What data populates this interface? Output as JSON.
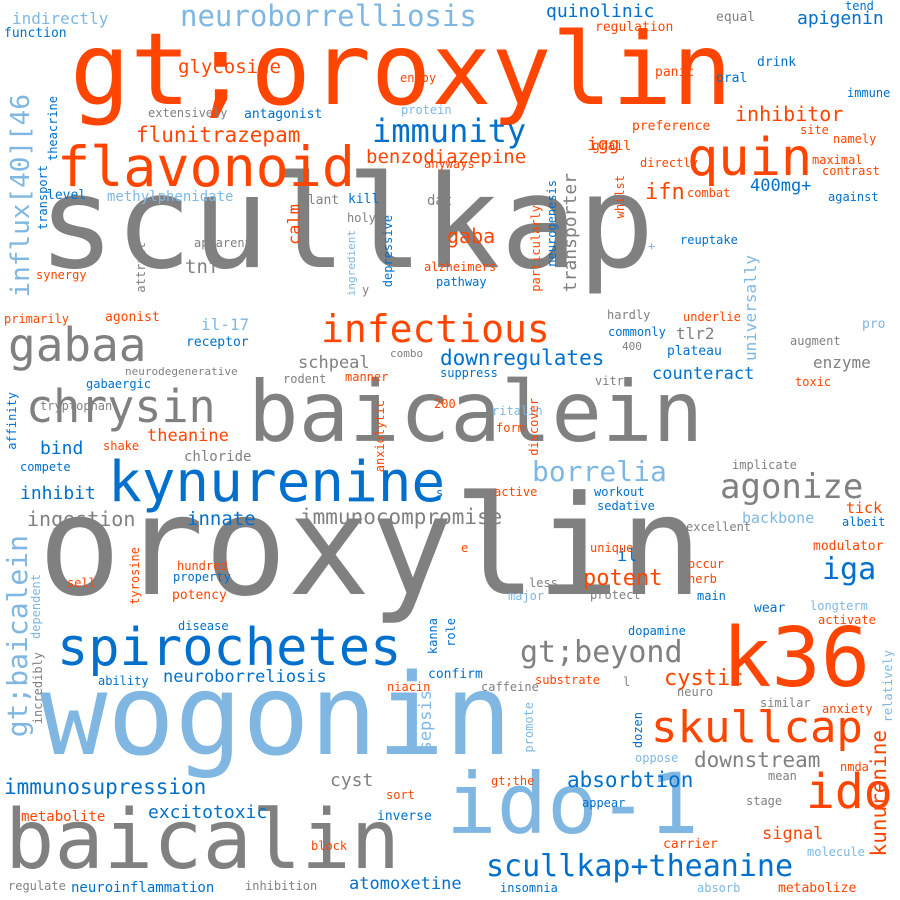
{
  "palette": {
    "orange": "#ff4500",
    "grey": "#808080",
    "blue": "#0070cc",
    "light_blue": "#7fb7e2"
  },
  "words": [
    {
      "text": "scullkap"
    },
    {
      "text": "oroxylin"
    },
    {
      "text": "wogonin"
    },
    {
      "text": "gt;oroxylin"
    },
    {
      "text": "baicalein"
    },
    {
      "text": "baicalin"
    },
    {
      "text": "ido-1"
    },
    {
      "text": "k36"
    },
    {
      "text": "kynurenine"
    },
    {
      "text": "spirochetes"
    },
    {
      "text": "flavonoid"
    },
    {
      "text": "quin"
    },
    {
      "text": "infectious"
    },
    {
      "text": "gabaa"
    },
    {
      "text": "chrysin"
    },
    {
      "text": "skullcap"
    },
    {
      "text": "ido"
    },
    {
      "text": "agonize"
    },
    {
      "text": "immunity"
    },
    {
      "text": "scullkap+theanine"
    },
    {
      "text": "neuroborrelliosis"
    },
    {
      "text": "gt;beyond"
    },
    {
      "text": "borrelia"
    },
    {
      "text": "gt;baicalein"
    },
    {
      "text": "influx[40][46"
    },
    {
      "text": "immunosupression"
    },
    {
      "text": "iga"
    },
    {
      "text": "cystic"
    },
    {
      "text": "potent"
    },
    {
      "text": "flunitrazepam"
    },
    {
      "text": "benzodiazepine"
    },
    {
      "text": "kunurenine"
    },
    {
      "text": "downregulates"
    },
    {
      "text": "downstream"
    },
    {
      "text": "absorbtion"
    },
    {
      "text": "quinolinic"
    },
    {
      "text": "apigenin"
    },
    {
      "text": "inhibitor"
    },
    {
      "text": "ifn"
    },
    {
      "text": "gaba"
    },
    {
      "text": "glycoside"
    },
    {
      "text": "tnf"
    },
    {
      "text": "immunocompromise"
    },
    {
      "text": "ingestion"
    },
    {
      "text": "innate"
    },
    {
      "text": "inhibit"
    },
    {
      "text": "bind"
    },
    {
      "text": "excitotoxic"
    },
    {
      "text": "neuroborreliosis"
    },
    {
      "text": "counteract"
    },
    {
      "text": "atomoxetine"
    },
    {
      "text": "neuroinflammation"
    },
    {
      "text": "theanine"
    },
    {
      "text": "igg"
    },
    {
      "text": "transporter"
    },
    {
      "text": "calm"
    },
    {
      "text": "schpeal"
    },
    {
      "text": "cyst"
    },
    {
      "text": "sepsis"
    },
    {
      "text": "signal"
    },
    {
      "text": "universally"
    },
    {
      "text": "400mg+"
    },
    {
      "text": "il-17"
    },
    {
      "text": "tlr2"
    },
    {
      "text": "enzyme"
    },
    {
      "text": "il"
    },
    {
      "text": "backbone"
    },
    {
      "text": "tick"
    },
    {
      "text": "modulator"
    },
    {
      "text": "indirectly"
    },
    {
      "text": "function"
    },
    {
      "text": "regulation"
    },
    {
      "text": "equal"
    },
    {
      "text": "tend"
    },
    {
      "text": "immune"
    },
    {
      "text": "drink"
    },
    {
      "text": "oral"
    },
    {
      "text": "panic"
    },
    {
      "text": "enjoy"
    },
    {
      "text": "protein"
    },
    {
      "text": "extensively"
    },
    {
      "text": "antagonist"
    },
    {
      "text": "theacrine"
    },
    {
      "text": "grail"
    },
    {
      "text": "preference"
    },
    {
      "text": "site"
    },
    {
      "text": "namely"
    },
    {
      "text": "maximal"
    },
    {
      "text": "contrast"
    },
    {
      "text": "directly"
    },
    {
      "text": "anyways"
    },
    {
      "text": "combat"
    },
    {
      "text": "against"
    },
    {
      "text": "methylphenidate"
    },
    {
      "text": "level"
    },
    {
      "text": "transport"
    },
    {
      "text": "plant"
    },
    {
      "text": "kill"
    },
    {
      "text": "holy"
    },
    {
      "text": "dat"
    },
    {
      "text": "whilst"
    },
    {
      "text": "reuptake"
    },
    {
      "text": "apparent"
    },
    {
      "text": "depressive"
    },
    {
      "text": "ingredient"
    },
    {
      "text": "particularly"
    },
    {
      "text": "neurogenesis"
    },
    {
      "text": "alzheimers"
    },
    {
      "text": "pathway"
    },
    {
      "text": "synergy"
    },
    {
      "text": "attract"
    },
    {
      "text": "primarily"
    },
    {
      "text": "agonist"
    },
    {
      "text": "receptor"
    },
    {
      "text": "hardly"
    },
    {
      "text": "underlie"
    },
    {
      "text": "commonly"
    },
    {
      "text": "augment"
    },
    {
      "text": "plateau"
    },
    {
      "text": "pro"
    },
    {
      "text": "combo"
    },
    {
      "text": "400"
    },
    {
      "text": "neurodegenerative"
    },
    {
      "text": "rodent"
    },
    {
      "text": "manner"
    },
    {
      "text": "suppress"
    },
    {
      "text": "toxic"
    },
    {
      "text": "gabaergic"
    },
    {
      "text": "affinity"
    },
    {
      "text": "tryptophan"
    },
    {
      "text": "200"
    },
    {
      "text": "vitro"
    },
    {
      "text": "ritalin"
    },
    {
      "text": "form"
    },
    {
      "text": "discover"
    },
    {
      "text": "anxiolytic"
    },
    {
      "text": "shake"
    },
    {
      "text": "chloride"
    },
    {
      "text": "compete"
    },
    {
      "text": "implicate"
    },
    {
      "text": "active"
    },
    {
      "text": "workout"
    },
    {
      "text": "sedative"
    },
    {
      "text": "excellent"
    },
    {
      "text": "albeit"
    },
    {
      "text": "unique"
    },
    {
      "text": "occur"
    },
    {
      "text": "herb"
    },
    {
      "text": "hundred"
    },
    {
      "text": "property"
    },
    {
      "text": "potency"
    },
    {
      "text": "tyrosine"
    },
    {
      "text": "sell"
    },
    {
      "text": "dependent"
    },
    {
      "text": "less"
    },
    {
      "text": "major"
    },
    {
      "text": "protect"
    },
    {
      "text": "main"
    },
    {
      "text": "wear"
    },
    {
      "text": "longterm"
    },
    {
      "text": "activate"
    },
    {
      "text": "disease"
    },
    {
      "text": "kanna"
    },
    {
      "text": "role"
    },
    {
      "text": "dopamine"
    },
    {
      "text": "ability"
    },
    {
      "text": "confirm"
    },
    {
      "text": "caffeine"
    },
    {
      "text": "niacin"
    },
    {
      "text": "substrate"
    },
    {
      "text": "neuro"
    },
    {
      "text": "similar"
    },
    {
      "text": "anxiety"
    },
    {
      "text": "relatively"
    },
    {
      "text": "incredibly"
    },
    {
      "text": "promote"
    },
    {
      "text": "dozen"
    },
    {
      "text": "oppose"
    },
    {
      "text": "mean"
    },
    {
      "text": "nmda"
    },
    {
      "text": "stage"
    },
    {
      "text": "metabolite"
    },
    {
      "text": "sort"
    },
    {
      "text": "gt;the"
    },
    {
      "text": "appear"
    },
    {
      "text": "inverse"
    },
    {
      "text": "block"
    },
    {
      "text": "carrier"
    },
    {
      "text": "molecule"
    },
    {
      "text": "regulate"
    },
    {
      "text": "inhibition"
    },
    {
      "text": "insomnia"
    },
    {
      "text": "absorb"
    },
    {
      "text": "metabolize"
    },
    {
      "text": "s"
    },
    {
      "text": "e"
    },
    {
      "text": "y"
    },
    {
      "text": "l"
    },
    {
      "text": "+"
    }
  ]
}
